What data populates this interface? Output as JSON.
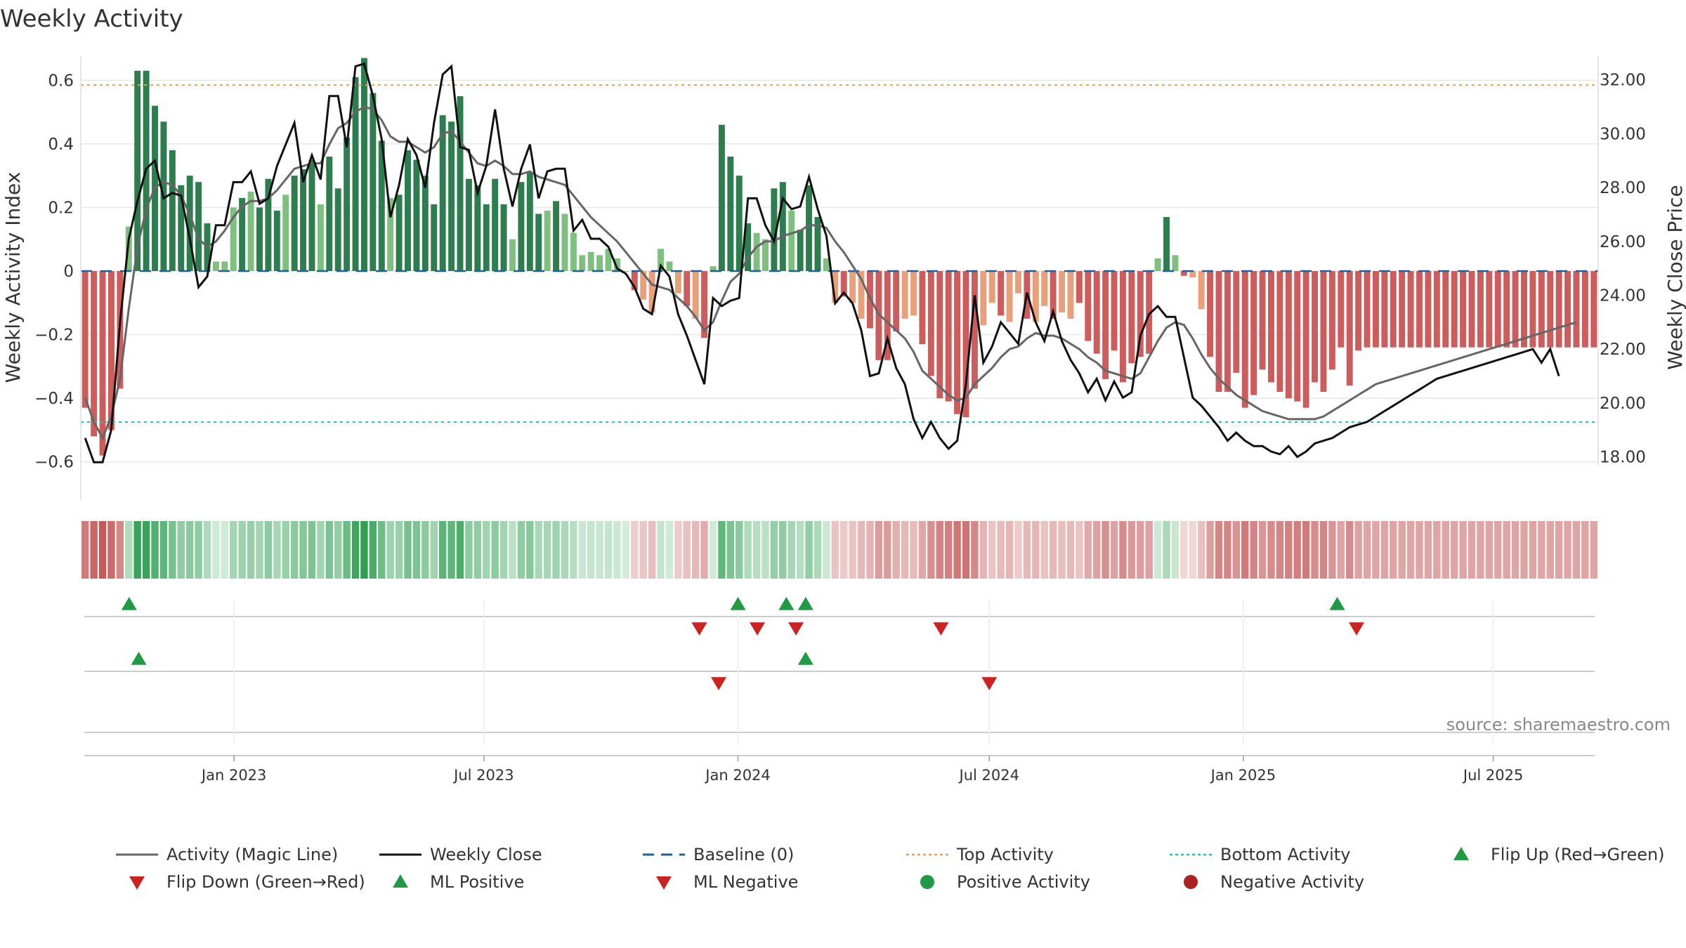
{
  "colors": {
    "pos_strong": "#2e7d4f",
    "pos_light": "#7fbf7f",
    "neg_strong": "#cd5c5c",
    "neg_light": "#e8a07a",
    "magic_line": "#666666",
    "weekly_close": "#111111",
    "baseline": "#1f5f9a",
    "top_activity": "#e0a060",
    "bottom_activity": "#22bbcc",
    "up_marker": "#229944",
    "down_marker": "#cc2222",
    "grid": "#e8e8e8"
  },
  "chart_data": {
    "type": "bar",
    "title": "Weekly Activity",
    "ylabel": "Weekly Activity Index",
    "y2label": "Weekly Close Price",
    "ylim": [
      -0.72,
      0.72
    ],
    "y2lim": [
      16.4,
      33.4
    ],
    "xlim": [
      "2022-09-12",
      "2025-09-15"
    ],
    "x_ticks": [
      "Jan 2023",
      "Jul 2023",
      "Jan 2024",
      "Jul 2024",
      "Jan 2025",
      "Jul 2025"
    ],
    "x_tick_dates": [
      "2023-01-01",
      "2023-07-01",
      "2024-01-01",
      "2024-07-01",
      "2025-01-01",
      "2025-07-01"
    ],
    "y_ticks": [
      "0.6",
      "0.4",
      "0.2",
      "0",
      "−0.2",
      "−0.4",
      "−0.6"
    ],
    "y_tick_values": [
      0.6,
      0.4,
      0.2,
      0,
      -0.2,
      -0.4,
      -0.6
    ],
    "y2_ticks": [
      "32.00",
      "30.00",
      "28.00",
      "26.00",
      "24.00",
      "22.00",
      "20.00",
      "18.00"
    ],
    "y2_tick_values": [
      32,
      30,
      28,
      26,
      24,
      22,
      20,
      18
    ],
    "top_activity": 0.585,
    "bottom_activity": -0.475,
    "baseline": 0,
    "first_week": "2022-09-12",
    "activity": [
      -0.43,
      -0.52,
      -0.58,
      -0.5,
      -0.37,
      0.14,
      0.63,
      0.63,
      0.52,
      0.47,
      0.38,
      0.27,
      0.3,
      0.28,
      0.15,
      0.03,
      0.03,
      0.2,
      0.23,
      0.25,
      0.2,
      0.29,
      0.19,
      0.24,
      0.3,
      0.32,
      0.35,
      0.21,
      0.36,
      0.26,
      0.42,
      0.61,
      0.67,
      0.56,
      0.41,
      0.23,
      0.24,
      0.38,
      0.35,
      0.3,
      0.21,
      0.49,
      0.47,
      0.55,
      0.29,
      0.27,
      0.21,
      0.29,
      0.21,
      0.1,
      0.28,
      0.31,
      0.18,
      0.19,
      0.22,
      0.18,
      0.12,
      0.05,
      0.06,
      0.05,
      0.07,
      0.04,
      0.0,
      -0.06,
      -0.09,
      -0.13,
      0.07,
      0.03,
      -0.07,
      -0.11,
      -0.15,
      -0.21,
      0.015,
      0.46,
      0.36,
      0.3,
      0.15,
      0.12,
      0.1,
      0.26,
      0.28,
      0.19,
      0.13,
      0.27,
      0.17,
      0.04,
      -0.1,
      -0.08,
      -0.1,
      -0.15,
      -0.18,
      -0.28,
      -0.28,
      -0.19,
      -0.15,
      -0.14,
      -0.23,
      -0.33,
      -0.4,
      -0.41,
      -0.45,
      -0.46,
      -0.37,
      -0.17,
      -0.1,
      -0.14,
      -0.16,
      -0.07,
      -0.15,
      -0.16,
      -0.11,
      -0.15,
      -0.13,
      -0.15,
      -0.1,
      -0.22,
      -0.26,
      -0.34,
      -0.25,
      -0.35,
      -0.29,
      -0.27,
      -0.26,
      0.04,
      0.17,
      0.05,
      -0.015,
      -0.02,
      -0.12,
      -0.27,
      -0.38,
      -0.38,
      -0.32,
      -0.43,
      -0.39,
      -0.31,
      -0.35,
      -0.38,
      -0.4,
      -0.41,
      -0.43,
      -0.35,
      -0.38,
      -0.31,
      -0.24,
      -0.36,
      -0.25,
      -0.24,
      -0.24,
      -0.24,
      -0.24,
      -0.24,
      -0.24,
      -0.24,
      -0.24,
      -0.24,
      -0.24,
      -0.24,
      -0.24,
      -0.24,
      -0.24,
      -0.24,
      -0.24,
      -0.24,
      -0.24,
      -0.24,
      -0.24,
      -0.24,
      -0.24,
      -0.24,
      -0.24,
      -0.24,
      -0.24,
      -0.24
    ],
    "close": [
      18.7,
      17.8,
      17.8,
      19.0,
      23.0,
      26.1,
      27.5,
      28.7,
      29.0,
      27.6,
      27.8,
      27.7,
      26.1,
      24.3,
      24.7,
      26.6,
      26.6,
      28.2,
      28.2,
      28.6,
      27.4,
      27.6,
      28.8,
      29.6,
      30.4,
      28.2,
      29.2,
      28.3,
      31.4,
      31.4,
      29.5,
      32.5,
      32.6,
      31.4,
      29.8,
      26.9,
      28.1,
      29.8,
      29.2,
      28.0,
      30.4,
      32.2,
      32.5,
      29.5,
      29.4,
      27.8,
      28.8,
      30.9,
      28.7,
      27.3,
      28.7,
      29.6,
      27.6,
      28.6,
      28.7,
      28.7,
      26.4,
      26.8,
      26.1,
      26.1,
      25.8,
      25.0,
      24.8,
      24.3,
      23.5,
      23.3,
      25.1,
      24.7,
      23.3,
      22.5,
      21.6,
      20.7,
      23.9,
      23.6,
      23.8,
      23.9,
      27.6,
      27.6,
      26.6,
      26.0,
      27.6,
      27.2,
      27.3,
      28.4,
      27.2,
      26.2,
      23.7,
      24.1,
      23.7,
      22.7,
      21.0,
      21.1,
      22.4,
      21.3,
      20.7,
      19.4,
      18.7,
      19.3,
      18.7,
      18.3,
      18.6,
      20.7,
      24.0,
      21.5,
      22.1,
      23.0,
      22.6,
      22.2,
      24.1,
      23.0,
      22.3,
      23.4,
      22.3,
      21.6,
      21.1,
      20.4,
      20.9,
      20.1,
      20.8,
      20.2,
      20.4,
      22.5,
      23.3,
      23.6,
      23.2,
      23.2,
      21.7,
      20.2,
      19.9,
      19.5,
      19.1,
      18.6,
      18.9,
      18.6,
      18.4,
      18.4,
      18.2,
      18.1,
      18.4,
      18.0,
      18.2,
      18.5,
      18.6,
      18.7,
      18.9,
      19.1,
      19.2,
      19.3,
      19.5,
      19.7,
      19.9,
      20.1,
      20.3,
      20.5,
      20.7,
      20.9,
      21.0,
      21.1,
      21.2,
      21.3,
      21.4,
      21.5,
      21.6,
      21.7,
      21.8,
      21.9,
      22.0,
      21.5,
      22.0,
      21.0
    ],
    "magic_line": [
      20.2,
      19.3,
      18.7,
      19.5,
      20.9,
      23.5,
      25.8,
      27.2,
      28.0,
      28.2,
      28.1,
      27.7,
      27.0,
      26.1,
      25.8,
      26.0,
      26.4,
      26.9,
      27.3,
      27.5,
      27.5,
      27.6,
      27.9,
      28.3,
      28.7,
      28.8,
      28.9,
      28.9,
      29.6,
      30.2,
      30.4,
      30.8,
      31.0,
      30.9,
      30.5,
      29.9,
      29.7,
      29.7,
      29.5,
      29.3,
      29.5,
      30.0,
      30.1,
      29.7,
      29.3,
      28.9,
      28.8,
      29.0,
      28.8,
      28.5,
      28.5,
      28.6,
      28.4,
      28.3,
      28.2,
      28.1,
      27.7,
      27.3,
      26.9,
      26.6,
      26.3,
      26.0,
      25.6,
      25.2,
      24.8,
      24.4,
      24.3,
      24.2,
      23.9,
      23.6,
      23.2,
      22.7,
      23.0,
      23.8,
      24.5,
      24.8,
      25.4,
      25.8,
      26.0,
      26.0,
      26.2,
      26.3,
      26.4,
      26.6,
      26.6,
      26.5,
      26.0,
      25.6,
      25.1,
      24.6,
      23.9,
      23.3,
      23.0,
      22.7,
      22.4,
      21.9,
      21.2,
      20.9,
      20.6,
      20.3,
      20.1,
      20.2,
      20.7,
      21.0,
      21.3,
      21.7,
      22.0,
      22.1,
      22.4,
      22.6,
      22.5,
      22.5,
      22.4,
      22.2,
      22.0,
      21.7,
      21.5,
      21.2,
      21.1,
      21.0,
      20.9,
      21.1,
      21.7,
      22.3,
      22.8,
      23.0,
      22.9,
      22.4,
      21.8,
      21.3,
      20.9,
      20.6,
      20.3,
      20.1,
      19.9,
      19.7,
      19.6,
      19.5,
      19.4,
      19.4,
      19.4,
      19.4,
      19.5,
      19.7,
      19.9,
      20.1,
      20.3,
      20.5,
      20.7,
      20.8,
      20.9,
      21.0,
      21.1,
      21.2,
      21.3,
      21.4,
      21.5,
      21.6,
      21.7,
      21.8,
      21.9,
      22.0,
      22.1,
      22.2,
      22.3,
      22.4,
      22.5,
      22.6,
      22.7,
      22.8,
      22.9,
      23.0
    ],
    "flip_up": [
      "2022-10-17",
      "2024-01-01",
      "2024-02-05",
      "2024-02-19",
      "2025-03-10"
    ],
    "flip_down": [
      "2023-12-04",
      "2024-01-15",
      "2024-02-12",
      "2024-05-27",
      "2025-03-24"
    ],
    "ml_positive": [
      "2022-10-24",
      "2024-02-19"
    ],
    "ml_negative": [
      "2023-12-18",
      "2024-07-01"
    ],
    "legend": [
      {
        "label": "Activity (Magic Line)",
        "kind": "line",
        "color": "#666666"
      },
      {
        "label": "Weekly Close",
        "kind": "line",
        "color": "#111111"
      },
      {
        "label": "Baseline (0)",
        "kind": "dash",
        "color": "#1f5f9a"
      },
      {
        "label": "Top Activity",
        "kind": "dot",
        "color": "#e0a060"
      },
      {
        "label": "Bottom Activity",
        "kind": "dot",
        "color": "#22bbcc"
      },
      {
        "label": "Flip Up (Red→Green)",
        "kind": "tri-up",
        "color": "#229944"
      },
      {
        "label": "Flip Down (Green→Red)",
        "kind": "tri-down",
        "color": "#cc2222"
      },
      {
        "label": "ML Positive",
        "kind": "tri-up",
        "color": "#229944"
      },
      {
        "label": "ML Negative",
        "kind": "tri-down",
        "color": "#cc2222"
      },
      {
        "label": "Positive Activity",
        "kind": "circle",
        "color": "#229944"
      },
      {
        "label": "Negative Activity",
        "kind": "circle",
        "color": "#aa2222"
      }
    ]
  },
  "source": "source: sharemaestro.com"
}
